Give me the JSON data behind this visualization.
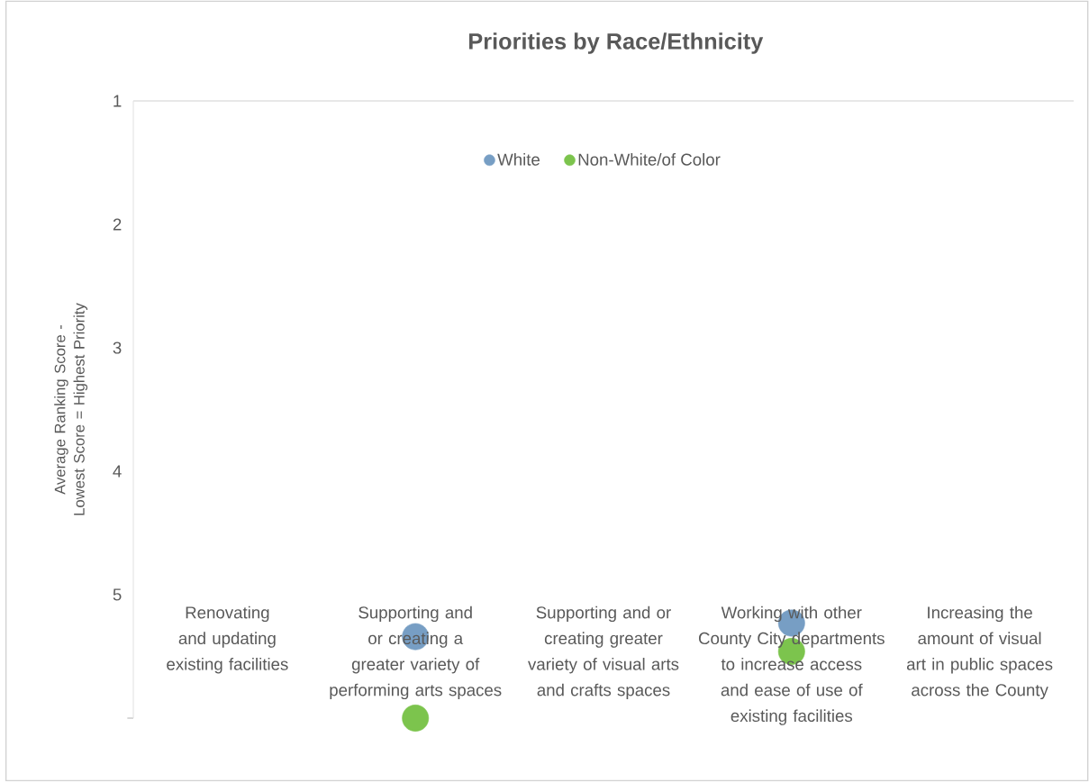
{
  "chart_data": {
    "type": "scatter",
    "title": "Priorities by Race/Ethnicity",
    "ylabel": "Average Ranking Score - Lowest Score = Highest Priority",
    "categories": [
      "Renovating and updating existing facilities",
      "Supporting and or creating a greater variety of performing arts spaces",
      "Supporting and or creating greater variety of visual arts and crafts spaces",
      "Working with other County City departments to increase access and ease of use of existing facilities",
      "Increasing the amount of visual art in public spaces across the County"
    ],
    "series": [
      {
        "name": "White",
        "color": "#779ec4",
        "values": [
          null,
          5.34,
          null,
          5.23,
          null
        ]
      },
      {
        "name": "Non-White/of Color",
        "color": "#7cc44d",
        "values": [
          null,
          6.0,
          null,
          5.46,
          null
        ]
      }
    ],
    "ylim": [
      6,
      1
    ],
    "yticks": [
      1,
      2,
      3,
      4,
      5,
      {
        "value": 6,
        "label": null
      }
    ],
    "legend": "top",
    "marker": "circle"
  }
}
